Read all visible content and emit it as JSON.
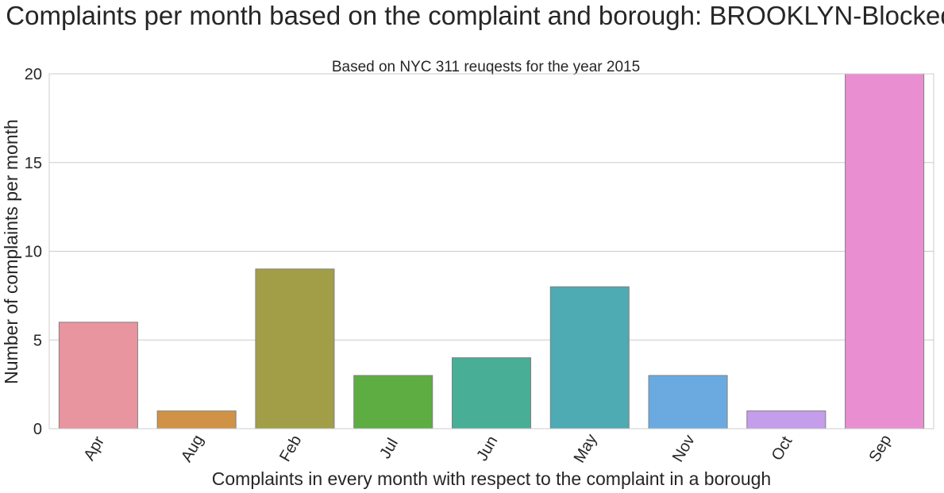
{
  "chart_data": {
    "type": "bar",
    "title": "Complaints per month based on the complaint and borough: BROOKLYN-Blocked",
    "subtitle": "Based on NYC 311 reuqests for the year 2015",
    "xlabel": "Complaints in every month with respect to the complaint in a borough",
    "ylabel": "Number of complaints per month",
    "categories": [
      "Apr",
      "Aug",
      "Feb",
      "Jul",
      "Jun",
      "May",
      "Nov",
      "Oct",
      "Sep"
    ],
    "values": [
      6,
      1,
      9,
      3,
      4,
      8,
      3,
      1,
      20
    ],
    "colors": [
      "#e8959f",
      "#d09246",
      "#a19e47",
      "#5dad43",
      "#48ae96",
      "#4eaab3",
      "#6aaae0",
      "#c49deb",
      "#e98ed0"
    ],
    "ylim": [
      0,
      20
    ],
    "yticks": [
      0,
      5,
      10,
      15,
      20
    ],
    "grid": "horizontal",
    "gridColor": "#cccccc",
    "barEdgeColor": "#808080"
  }
}
